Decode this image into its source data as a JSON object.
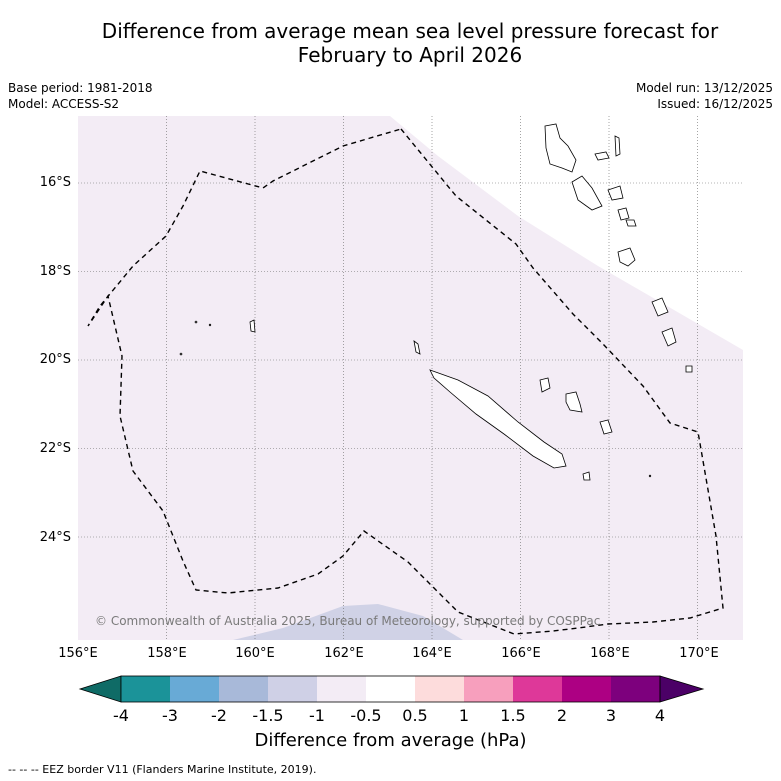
{
  "title": {
    "line1": "Difference from average mean sea level pressure forecast for",
    "line2": "February to April 2026"
  },
  "meta": {
    "base_period": "Base period: 1981-2018",
    "model": "Model: ACCESS-S2",
    "model_run": "Model run: 13/12/2025",
    "issued": "Issued: 16/12/2025"
  },
  "map": {
    "lat_labels": [
      "16°S",
      "18°S",
      "20°S",
      "22°S",
      "24°S"
    ],
    "lon_labels": [
      "156°E",
      "158°E",
      "160°E",
      "162°E",
      "164°E",
      "166°E",
      "168°E",
      "170°E"
    ],
    "copyright": "© Commonwealth of Australia 2025, Bureau of Meteorology, supported by COSPPac",
    "region_fill_light": "#f3ecf5",
    "region_fill_blue": "#d0d2e6",
    "eez_color": "#000000"
  },
  "colorbar": {
    "ticks": [
      "-4",
      "-3",
      "-2",
      "-1.5",
      "-1",
      "-0.5",
      "0.5",
      "1",
      "1.5",
      "2",
      "3",
      "4"
    ],
    "colors": [
      "#0f6b66",
      "#1b9399",
      "#68aad6",
      "#a8b9d9",
      "#cfd0e6",
      "#f3ecf5",
      "#ffffff",
      "#fddcdc",
      "#f79fbd",
      "#de3899",
      "#ad0083",
      "#7d007d",
      "#4b0066"
    ],
    "label": "Difference from average (hPa)"
  },
  "footnote": "--  --  -- EEZ border V11 (Flanders Marine Institute, 2019)."
}
